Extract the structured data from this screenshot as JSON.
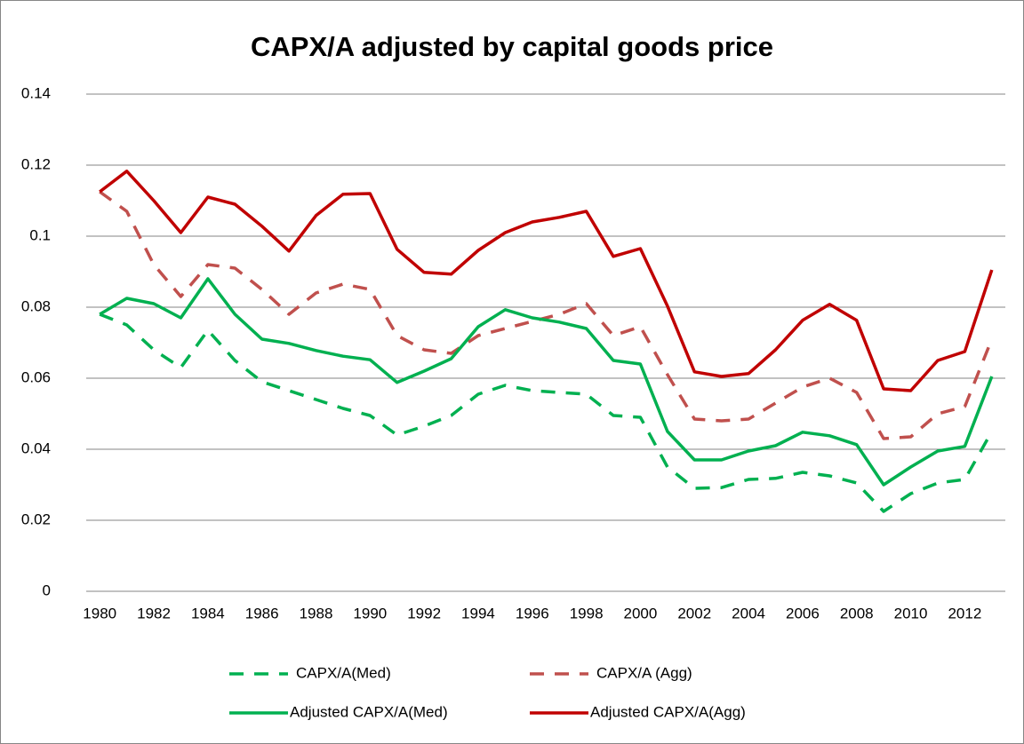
{
  "chart_data": {
    "type": "line",
    "title": "CAPX/A adjusted by capital goods price",
    "categories": [
      "1980",
      null,
      "1982",
      null,
      "1984",
      null,
      "1986",
      null,
      "1988",
      null,
      "1990",
      null,
      "1992",
      null,
      "1994",
      null,
      "1996",
      null,
      "1998",
      null,
      "2000",
      null,
      "2002",
      null,
      "2004",
      null,
      "2006",
      null,
      "2008",
      null,
      "2010",
      null,
      "2012",
      null
    ],
    "ylim": [
      0,
      0.14
    ],
    "yticks": [
      0,
      0.02,
      0.04,
      0.06,
      0.08,
      0.1,
      0.12,
      0.14
    ],
    "grid": true,
    "series": [
      {
        "name": "CAPX/A(Med)",
        "color": "#00b050",
        "dashed": true,
        "values": [
          0.078,
          0.075,
          0.068,
          0.063,
          0.0735,
          0.065,
          0.059,
          0.0565,
          0.054,
          0.0515,
          0.0495,
          0.044,
          0.0465,
          0.0495,
          0.0555,
          0.058,
          0.0565,
          0.056,
          0.0555,
          0.0495,
          0.049,
          0.035,
          0.029,
          0.0292,
          0.0315,
          0.0318,
          0.0335,
          0.0325,
          0.0305,
          0.0225,
          0.0275,
          0.0305,
          0.0315,
          0.045
        ]
      },
      {
        "name": "CAPX/A (Agg)",
        "color": "#c0504d",
        "dashed": true,
        "values": [
          0.1125,
          0.107,
          0.092,
          0.083,
          0.092,
          0.091,
          0.085,
          0.078,
          0.084,
          0.0865,
          0.085,
          0.072,
          0.068,
          0.067,
          0.072,
          0.074,
          0.076,
          0.078,
          0.081,
          0.072,
          0.0745,
          0.061,
          0.0485,
          0.048,
          0.0485,
          0.053,
          0.0575,
          0.06,
          0.056,
          0.043,
          0.0435,
          0.05,
          0.052,
          0.071
        ]
      },
      {
        "name": "Adjusted CAPX/A(Med)",
        "color": "#00b050",
        "dashed": false,
        "values": [
          0.078,
          0.0825,
          0.081,
          0.077,
          0.088,
          0.078,
          0.071,
          0.0698,
          0.0678,
          0.0662,
          0.0652,
          0.0588,
          0.062,
          0.0655,
          0.0745,
          0.0793,
          0.077,
          0.0758,
          0.074,
          0.065,
          0.064,
          0.045,
          0.037,
          0.037,
          0.0395,
          0.041,
          0.0448,
          0.0438,
          0.0413,
          0.03,
          0.035,
          0.0395,
          0.0408,
          0.0605
        ]
      },
      {
        "name": "Adjusted CAPX/A(Agg)",
        "color": "#c00000",
        "dashed": false,
        "values": [
          0.1125,
          0.1183,
          0.11,
          0.101,
          0.111,
          0.109,
          0.1028,
          0.0958,
          0.1058,
          0.1118,
          0.112,
          0.0963,
          0.0898,
          0.0893,
          0.096,
          0.101,
          0.104,
          0.1053,
          0.107,
          0.0943,
          0.0965,
          0.0803,
          0.0618,
          0.0605,
          0.0613,
          0.068,
          0.0763,
          0.0808,
          0.0763,
          0.057,
          0.0565,
          0.065,
          0.0675,
          0.0905
        ]
      }
    ]
  }
}
